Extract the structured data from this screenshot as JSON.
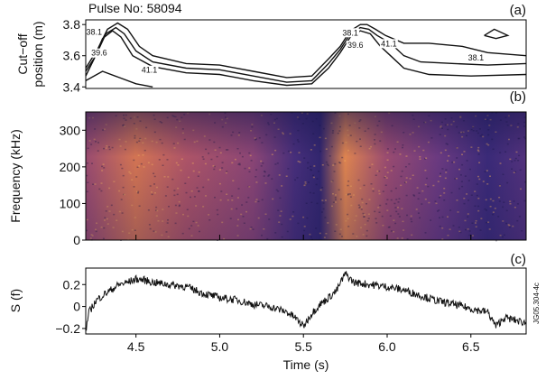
{
  "figure": {
    "title": "Pulse No: 58094",
    "code": "JG05.304-4c"
  },
  "chart_data": [
    {
      "panel_label": "(a)",
      "type": "line",
      "ylabel_line1": "Cut−off",
      "ylabel_line2": "position (m)",
      "xlim": [
        4.2,
        6.83
      ],
      "ylim": [
        3.39,
        3.83
      ],
      "yticks": [
        "3.4",
        "3.6",
        "3.8"
      ],
      "ytick_values": [
        3.4,
        3.6,
        3.8
      ],
      "contour_labels": [
        {
          "text": "38.1",
          "x": 4.25,
          "y": 3.735
        },
        {
          "text": "39.6",
          "x": 4.28,
          "y": 3.6
        },
        {
          "text": "41.1",
          "x": 4.58,
          "y": 3.49
        },
        {
          "text": "38.1",
          "x": 5.78,
          "y": 3.73
        },
        {
          "text": "39.6",
          "x": 5.81,
          "y": 3.65
        },
        {
          "text": "41.1",
          "x": 6.01,
          "y": 3.66
        },
        {
          "text": "38.1",
          "x": 6.53,
          "y": 3.57
        }
      ],
      "series": [
        {
          "values_xy": [
            [
              4.2,
              3.52
            ],
            [
              4.27,
              3.64
            ],
            [
              4.33,
              3.77
            ],
            [
              4.39,
              3.81
            ],
            [
              4.45,
              3.77
            ],
            [
              4.52,
              3.66
            ],
            [
              4.6,
              3.6
            ],
            [
              4.8,
              3.55
            ],
            [
              5,
              3.54
            ],
            [
              5.2,
              3.5
            ],
            [
              5.4,
              3.46
            ],
            [
              5.55,
              3.47
            ],
            [
              5.65,
              3.58
            ],
            [
              5.72,
              3.66
            ],
            [
              5.78,
              3.76
            ],
            [
              5.84,
              3.8
            ],
            [
              5.88,
              3.8
            ],
            [
              5.93,
              3.77
            ],
            [
              5.99,
              3.73
            ],
            [
              6.1,
              3.68
            ],
            [
              6.25,
              3.68
            ],
            [
              6.45,
              3.66
            ],
            [
              6.6,
              3.62
            ],
            [
              6.83,
              3.6
            ]
          ]
        },
        {
          "values_xy": [
            [
              4.2,
              3.5
            ],
            [
              4.26,
              3.6
            ],
            [
              4.32,
              3.74
            ],
            [
              4.38,
              3.78
            ],
            [
              4.43,
              3.74
            ],
            [
              4.5,
              3.63
            ],
            [
              4.6,
              3.56
            ],
            [
              4.8,
              3.52
            ],
            [
              5,
              3.51
            ],
            [
              5.2,
              3.47
            ],
            [
              5.4,
              3.43
            ],
            [
              5.55,
              3.44
            ],
            [
              5.65,
              3.55
            ],
            [
              5.72,
              3.64
            ],
            [
              5.78,
              3.74
            ],
            [
              5.84,
              3.78
            ],
            [
              5.89,
              3.77
            ],
            [
              5.94,
              3.73
            ],
            [
              6.02,
              3.68
            ],
            [
              6.1,
              3.6
            ],
            [
              6.2,
              3.56
            ],
            [
              6.4,
              3.55
            ],
            [
              6.6,
              3.54
            ],
            [
              6.83,
              3.55
            ]
          ]
        },
        {
          "values_xy": [
            [
              4.2,
              3.47
            ],
            [
              4.25,
              3.58
            ],
            [
              4.3,
              3.71
            ],
            [
              4.36,
              3.76
            ],
            [
              4.41,
              3.72
            ],
            [
              4.48,
              3.6
            ],
            [
              4.6,
              3.53
            ],
            [
              4.8,
              3.49
            ],
            [
              5,
              3.48
            ],
            [
              5.2,
              3.44
            ],
            [
              5.4,
              3.41
            ],
            [
              5.55,
              3.42
            ],
            [
              5.65,
              3.52
            ],
            [
              5.72,
              3.62
            ],
            [
              5.78,
              3.72
            ],
            [
              5.84,
              3.76
            ],
            [
              5.9,
              3.74
            ],
            [
              5.96,
              3.66
            ],
            [
              6.02,
              3.6
            ],
            [
              6.1,
              3.52
            ],
            [
              6.25,
              3.48
            ],
            [
              6.5,
              3.47
            ],
            [
              6.83,
              3.48
            ]
          ]
        },
        {
          "values_xy": [
            [
              4.2,
              3.44
            ],
            [
              4.3,
              3.5
            ],
            [
              4.4,
              3.46
            ],
            [
              4.5,
              3.42
            ],
            [
              4.6,
              3.4
            ]
          ]
        },
        {
          "values_xy": [
            [
              6.58,
              3.73
            ],
            [
              6.64,
              3.77
            ],
            [
              6.72,
              3.73
            ],
            [
              6.65,
              3.71
            ],
            [
              6.58,
              3.73
            ]
          ]
        }
      ]
    },
    {
      "panel_label": "(b)",
      "type": "heatmap",
      "ylabel": "Frequency (kHz)",
      "xlim": [
        4.2,
        6.83
      ],
      "ylim": [
        0,
        350
      ],
      "yticks": [
        "0",
        "100",
        "200",
        "300"
      ],
      "ytick_values": [
        0,
        100,
        200,
        300
      ],
      "colors": [
        "#1a1850",
        "#3a2a78",
        "#6b3a80",
        "#a8506a",
        "#d87850",
        "#f0a850"
      ],
      "intensity_profile": [
        {
          "x": 4.2,
          "level": 0.55
        },
        {
          "x": 4.5,
          "level": 0.78
        },
        {
          "x": 4.8,
          "level": 0.62
        },
        {
          "x": 5.2,
          "level": 0.5
        },
        {
          "x": 5.45,
          "level": 0.25
        },
        {
          "x": 5.6,
          "level": 0.15
        },
        {
          "x": 5.75,
          "level": 0.85
        },
        {
          "x": 6.0,
          "level": 0.55
        },
        {
          "x": 6.3,
          "level": 0.4
        },
        {
          "x": 6.6,
          "level": 0.2
        },
        {
          "x": 6.83,
          "level": 0.3
        }
      ]
    },
    {
      "panel_label": "(c)",
      "type": "line",
      "ylabel": "S (f)",
      "xlabel": "Time (s)",
      "xlim": [
        4.2,
        6.83
      ],
      "ylim": [
        -0.25,
        0.35
      ],
      "yticks": [
        "−0.2",
        "0",
        "0.2"
      ],
      "ytick_values": [
        -0.2,
        0,
        0.2
      ],
      "xticks": [
        "4.5",
        "5.0",
        "5.5",
        "6.0",
        "6.5"
      ],
      "xtick_values": [
        4.5,
        5.0,
        5.5,
        6.0,
        6.5
      ],
      "series": [
        {
          "values_xy": [
            [
              4.2,
              -0.22
            ],
            [
              4.22,
              -0.05
            ],
            [
              4.26,
              0.05
            ],
            [
              4.3,
              0.1
            ],
            [
              4.35,
              0.15
            ],
            [
              4.4,
              0.2
            ],
            [
              4.45,
              0.22
            ],
            [
              4.5,
              0.25
            ],
            [
              4.55,
              0.24
            ],
            [
              4.6,
              0.22
            ],
            [
              4.7,
              0.2
            ],
            [
              4.8,
              0.18
            ],
            [
              4.9,
              0.12
            ],
            [
              5.0,
              0.08
            ],
            [
              5.1,
              0.06
            ],
            [
              5.2,
              0.02
            ],
            [
              5.3,
              0.0
            ],
            [
              5.4,
              -0.05
            ],
            [
              5.45,
              -0.1
            ],
            [
              5.5,
              -0.18
            ],
            [
              5.55,
              -0.06
            ],
            [
              5.6,
              0.02
            ],
            [
              5.65,
              0.08
            ],
            [
              5.7,
              0.15
            ],
            [
              5.75,
              0.3
            ],
            [
              5.8,
              0.22
            ],
            [
              5.9,
              0.2
            ],
            [
              6.0,
              0.18
            ],
            [
              6.1,
              0.15
            ],
            [
              6.2,
              0.1
            ],
            [
              6.3,
              0.05
            ],
            [
              6.4,
              0.02
            ],
            [
              6.5,
              -0.02
            ],
            [
              6.6,
              -0.05
            ],
            [
              6.65,
              -0.18
            ],
            [
              6.7,
              -0.1
            ],
            [
              6.83,
              -0.15
            ]
          ]
        }
      ]
    }
  ]
}
